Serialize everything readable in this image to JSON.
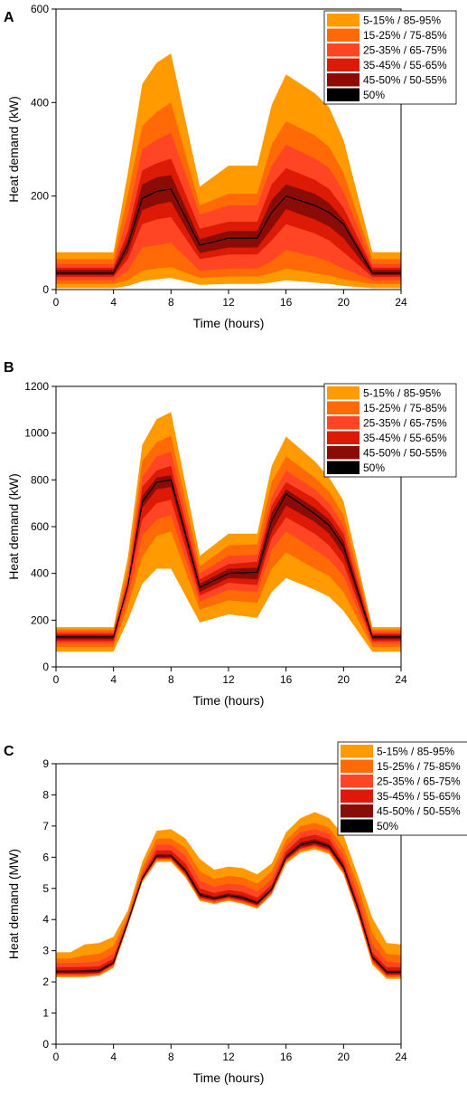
{
  "chart_data": [
    {
      "type": "area",
      "panel_label": "A",
      "xlabel": "Time (hours)",
      "ylabel": "Heat demand (kW)",
      "xlim": [
        0,
        24
      ],
      "ylim": [
        0,
        600
      ],
      "xticks": [
        0,
        4,
        8,
        12,
        16,
        20,
        24
      ],
      "yticks": [
        0,
        200,
        400,
        600
      ],
      "legend_position": "top-right",
      "legend": [
        {
          "label": "5-15% / 85-95%",
          "color": "#ff9a00"
        },
        {
          "label": "15-25% / 75-85%",
          "color": "#ff6a06"
        },
        {
          "label": "25-35% / 65-75%",
          "color": "#ff4523"
        },
        {
          "label": "35-45% / 55-65%",
          "color": "#dc1a06"
        },
        {
          "label": "45-50% / 50-55%",
          "color": "#8b0c06"
        },
        {
          "label": "50%",
          "color": "#000000"
        }
      ],
      "x": [
        0,
        4,
        5,
        6,
        7,
        8,
        10,
        12,
        14,
        15,
        16,
        18,
        19,
        20,
        22,
        24
      ],
      "bands": [
        {
          "label": "5-15% / 85-95%",
          "lower": [
            3,
            3,
            8,
            18,
            22,
            25,
            10,
            12,
            12,
            15,
            20,
            15,
            12,
            8,
            3,
            3
          ],
          "upper": [
            80,
            80,
            250,
            440,
            485,
            505,
            220,
            265,
            265,
            395,
            460,
            420,
            390,
            320,
            80,
            80
          ]
        },
        {
          "label": "15-25% / 75-85%",
          "lower": [
            12,
            12,
            20,
            40,
            45,
            48,
            25,
            28,
            28,
            35,
            45,
            35,
            30,
            22,
            12,
            12
          ],
          "upper": [
            65,
            65,
            205,
            350,
            380,
            400,
            180,
            205,
            205,
            310,
            360,
            330,
            305,
            250,
            65,
            65
          ]
        },
        {
          "label": "25-35% / 65-75%",
          "lower": [
            20,
            20,
            40,
            90,
            95,
            100,
            40,
            45,
            45,
            60,
            85,
            70,
            60,
            45,
            20,
            20
          ],
          "upper": [
            55,
            55,
            160,
            300,
            320,
            335,
            160,
            180,
            180,
            265,
            310,
            280,
            260,
            210,
            55,
            55
          ]
        },
        {
          "label": "35-45% / 55-65%",
          "lower": [
            27,
            27,
            65,
            140,
            150,
            155,
            65,
            75,
            75,
            105,
            140,
            120,
            105,
            80,
            27,
            27
          ],
          "upper": [
            47,
            47,
            125,
            255,
            270,
            280,
            130,
            145,
            145,
            225,
            260,
            235,
            215,
            175,
            47,
            47
          ]
        },
        {
          "label": "45-50% / 50-55%",
          "lower": [
            31,
            31,
            80,
            170,
            182,
            188,
            78,
            90,
            90,
            130,
            172,
            150,
            135,
            110,
            31,
            31
          ],
          "upper": [
            42,
            42,
            108,
            225,
            240,
            245,
            108,
            125,
            125,
            192,
            225,
            205,
            185,
            150,
            42,
            42
          ]
        }
      ],
      "median": [
        35,
        35,
        95,
        195,
        210,
        215,
        95,
        110,
        110,
        165,
        200,
        180,
        165,
        140,
        35,
        35
      ]
    },
    {
      "type": "area",
      "panel_label": "B",
      "xlabel": "Time (hours)",
      "ylabel": "Heat demand (kW)",
      "xlim": [
        0,
        24
      ],
      "ylim": [
        0,
        1200
      ],
      "xticks": [
        0,
        4,
        8,
        12,
        16,
        20,
        24
      ],
      "yticks": [
        0,
        200,
        400,
        600,
        800,
        1000,
        1200
      ],
      "legend_position": "top-right",
      "legend": [
        {
          "label": "5-15% / 85-95%",
          "color": "#ff9a00"
        },
        {
          "label": "15-25% / 75-85%",
          "color": "#ff6a06"
        },
        {
          "label": "25-35% / 65-75%",
          "color": "#ff4523"
        },
        {
          "label": "35-45% / 55-65%",
          "color": "#dc1a06"
        },
        {
          "label": "45-50% / 50-55%",
          "color": "#8b0c06"
        },
        {
          "label": "50%",
          "color": "#000000"
        }
      ],
      "x": [
        0,
        4,
        5,
        6,
        7,
        8,
        10,
        12,
        14,
        15,
        16,
        18,
        19,
        20,
        22,
        24
      ],
      "bands": [
        {
          "label": "5-15% / 85-95%",
          "lower": [
            65,
            65,
            200,
            355,
            420,
            420,
            190,
            225,
            210,
            320,
            380,
            330,
            300,
            240,
            65,
            65
          ],
          "upper": [
            170,
            170,
            470,
            950,
            1060,
            1090,
            475,
            570,
            570,
            860,
            985,
            880,
            810,
            710,
            170,
            170
          ]
        },
        {
          "label": "15-25% / 75-85%",
          "lower": [
            85,
            85,
            260,
            470,
            560,
            580,
            245,
            285,
            275,
            420,
            490,
            420,
            390,
            320,
            85,
            85
          ],
          "upper": [
            160,
            160,
            420,
            880,
            960,
            990,
            430,
            520,
            525,
            790,
            900,
            810,
            750,
            650,
            160,
            160
          ]
        },
        {
          "label": "25-35% / 65-75%",
          "lower": [
            100,
            100,
            300,
            560,
            630,
            650,
            280,
            330,
            320,
            500,
            580,
            500,
            460,
            390,
            100,
            100
          ],
          "upper": [
            150,
            150,
            385,
            810,
            900,
            920,
            400,
            475,
            480,
            725,
            840,
            760,
            700,
            605,
            150,
            150
          ]
        },
        {
          "label": "35-45% / 55-65%",
          "lower": [
            110,
            110,
            335,
            630,
            700,
            715,
            305,
            360,
            350,
            550,
            640,
            570,
            520,
            440,
            110,
            110
          ],
          "upper": [
            142,
            142,
            360,
            770,
            840,
            860,
            375,
            440,
            450,
            690,
            790,
            720,
            660,
            570,
            142,
            142
          ]
        },
        {
          "label": "45-50% / 50-55%",
          "lower": [
            118,
            118,
            345,
            680,
            760,
            770,
            320,
            380,
            375,
            580,
            690,
            620,
            570,
            480,
            118,
            118
          ],
          "upper": [
            135,
            135,
            350,
            730,
            810,
            820,
            355,
            420,
            425,
            660,
            760,
            680,
            630,
            540,
            135,
            135
          ]
        }
      ],
      "median": [
        128,
        128,
        348,
        705,
        790,
        800,
        340,
        400,
        405,
        625,
        740,
        655,
        605,
        515,
        128,
        128
      ]
    },
    {
      "type": "area",
      "panel_label": "C",
      "xlabel": "Time (hours)",
      "ylabel": "Heat demand (MW)",
      "xlim": [
        0,
        24
      ],
      "ylim": [
        0,
        9
      ],
      "xticks": [
        0,
        4,
        8,
        12,
        16,
        20,
        24
      ],
      "yticks": [
        0,
        1,
        2,
        3,
        4,
        5,
        6,
        7,
        8,
        9
      ],
      "legend_position": "top-right",
      "legend": [
        {
          "label": "5-15% / 85-95%",
          "color": "#ff9a00"
        },
        {
          "label": "15-25% / 75-85%",
          "color": "#ff6a06"
        },
        {
          "label": "25-35% / 65-75%",
          "color": "#ff4523"
        },
        {
          "label": "35-45% / 55-65%",
          "color": "#dc1a06"
        },
        {
          "label": "45-50% / 50-55%",
          "color": "#8b0c06"
        },
        {
          "label": "50%",
          "color": "#000000"
        }
      ],
      "x": [
        0,
        1,
        2,
        3,
        4,
        5,
        6,
        7,
        8,
        9,
        10,
        11,
        12,
        13,
        14,
        15,
        16,
        17,
        18,
        19,
        20,
        21,
        22,
        23,
        24
      ],
      "bands": [
        {
          "label": "5-15% / 85-95%",
          "lower": [
            2.15,
            2.15,
            2.15,
            2.2,
            2.45,
            3.8,
            5.2,
            5.85,
            5.85,
            5.35,
            4.6,
            4.5,
            4.6,
            4.5,
            4.35,
            4.8,
            5.8,
            6.15,
            6.25,
            6.1,
            5.45,
            4.1,
            2.55,
            2.1,
            2.1
          ],
          "upper": [
            2.95,
            2.95,
            3.2,
            3.25,
            3.45,
            4.3,
            5.85,
            6.85,
            6.9,
            6.6,
            5.95,
            5.6,
            5.7,
            5.65,
            5.45,
            5.8,
            6.8,
            7.25,
            7.45,
            7.25,
            6.7,
            5.4,
            4.05,
            3.25,
            3.2
          ]
        },
        {
          "label": "15-25% / 75-85%",
          "lower": [
            2.18,
            2.18,
            2.18,
            2.22,
            2.5,
            3.82,
            5.22,
            5.9,
            5.9,
            5.4,
            4.63,
            4.53,
            4.63,
            4.53,
            4.38,
            4.83,
            5.85,
            6.2,
            6.3,
            6.15,
            5.5,
            4.15,
            2.6,
            2.15,
            2.15
          ],
          "upper": [
            2.75,
            2.75,
            2.85,
            2.9,
            3.15,
            4.15,
            5.65,
            6.6,
            6.6,
            6.3,
            5.55,
            5.3,
            5.4,
            5.35,
            5.15,
            5.55,
            6.55,
            7.0,
            7.1,
            6.95,
            6.3,
            5.1,
            3.55,
            2.9,
            2.85
          ]
        },
        {
          "label": "25-35% / 65-75%",
          "lower": [
            2.22,
            2.22,
            2.22,
            2.25,
            2.53,
            3.85,
            5.25,
            5.93,
            5.93,
            5.43,
            4.66,
            4.56,
            4.66,
            4.56,
            4.41,
            4.86,
            5.88,
            6.24,
            6.34,
            6.19,
            5.54,
            4.2,
            2.65,
            2.18,
            2.18
          ],
          "upper": [
            2.6,
            2.6,
            2.62,
            2.66,
            2.9,
            4.05,
            5.5,
            6.4,
            6.4,
            6.05,
            5.25,
            5.05,
            5.15,
            5.1,
            4.9,
            5.3,
            6.35,
            6.8,
            6.9,
            6.75,
            6.05,
            4.8,
            3.2,
            2.65,
            2.6
          ]
        },
        {
          "label": "35-45% / 55-65%",
          "lower": [
            2.25,
            2.25,
            2.25,
            2.28,
            2.56,
            3.88,
            5.28,
            5.96,
            5.96,
            5.46,
            4.7,
            4.6,
            4.7,
            4.6,
            4.45,
            4.9,
            5.92,
            6.28,
            6.38,
            6.23,
            5.58,
            4.25,
            2.7,
            2.22,
            2.22
          ],
          "upper": [
            2.47,
            2.47,
            2.48,
            2.5,
            2.75,
            3.98,
            5.4,
            6.22,
            6.22,
            5.8,
            5.0,
            4.85,
            4.95,
            4.88,
            4.7,
            5.12,
            6.18,
            6.62,
            6.72,
            6.58,
            5.85,
            4.55,
            2.95,
            2.47,
            2.47
          ]
        },
        {
          "label": "45-50% / 50-55%",
          "lower": [
            2.28,
            2.28,
            2.28,
            2.3,
            2.58,
            3.9,
            5.3,
            5.99,
            5.99,
            5.5,
            4.73,
            4.63,
            4.73,
            4.63,
            4.48,
            4.93,
            5.95,
            6.32,
            6.42,
            6.27,
            5.62,
            4.3,
            2.75,
            2.26,
            2.26
          ],
          "upper": [
            2.38,
            2.38,
            2.39,
            2.41,
            2.66,
            3.94,
            5.35,
            6.1,
            6.1,
            5.64,
            4.87,
            4.74,
            4.84,
            4.76,
            4.59,
            5.02,
            6.06,
            6.48,
            6.58,
            6.43,
            5.74,
            4.43,
            2.85,
            2.37,
            2.37
          ]
        }
      ],
      "median": [
        2.33,
        2.33,
        2.34,
        2.36,
        2.62,
        3.92,
        5.32,
        6.05,
        6.05,
        5.57,
        4.8,
        4.68,
        4.78,
        4.7,
        4.53,
        4.97,
        6.0,
        6.4,
        6.5,
        6.35,
        5.68,
        4.36,
        2.8,
        2.32,
        2.32
      ]
    }
  ]
}
